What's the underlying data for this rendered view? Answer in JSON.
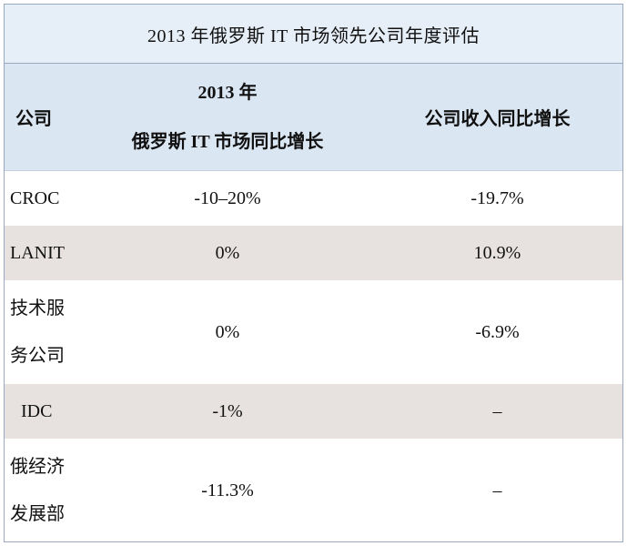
{
  "table": {
    "title": "2013 年俄罗斯 IT 市场领先公司年度评估",
    "headers": {
      "company": "公司",
      "market_growth_line1": "2013 年",
      "market_growth_line2": "俄罗斯 IT 市场同比增长",
      "revenue_growth": "公司收入同比增长"
    },
    "rows": [
      {
        "company_line1": "CROC",
        "company_line2": "",
        "market_growth": "-10–20%",
        "revenue_growth": "-19.7%"
      },
      {
        "company_line1": "LANIT",
        "company_line2": "",
        "market_growth": "0%",
        "revenue_growth": "10.9%"
      },
      {
        "company_line1": "技术服",
        "company_line2": "务公司",
        "market_growth": "0%",
        "revenue_growth": "-6.9%"
      },
      {
        "company_line1": "IDC",
        "company_line2": "",
        "market_growth": "-1%",
        "revenue_growth": "–"
      },
      {
        "company_line1": "俄经济",
        "company_line2": "发展部",
        "market_growth": "-11.3%",
        "revenue_growth": "–"
      }
    ]
  }
}
